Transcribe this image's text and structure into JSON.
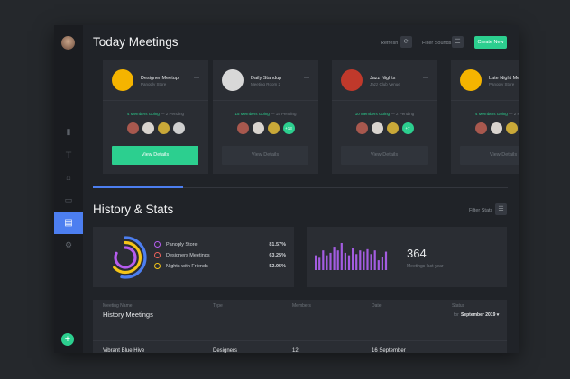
{
  "sidebar": {
    "items": [
      "chart-icon",
      "signpost-icon",
      "basket-icon",
      "chat-icon",
      "document-icon",
      "gear-icon"
    ],
    "active": "document-icon",
    "add_label": "+"
  },
  "header": {
    "title": "Today Meetings",
    "refresh": "Refresh",
    "filter": "Filter Sounds",
    "create": "Create New"
  },
  "meetings": [
    {
      "title": "Designer Meetup",
      "place": "Panoply Store",
      "going": "4 Members Going",
      "pending": "2 Pending",
      "more": "",
      "button": "View Details",
      "active": true,
      "logo": "#f5b400"
    },
    {
      "title": "Daily Standup",
      "place": "Meeting Room 2",
      "going": "15 Members Going",
      "pending": "15 Pending",
      "more": "+13",
      "button": "View Details",
      "active": false,
      "logo": "#d8d8d8"
    },
    {
      "title": "Jazz Nights",
      "place": "Jazz Club Venue",
      "going": "10 Members Going",
      "pending": "2 Pending",
      "more": "+7",
      "button": "View Details",
      "active": false,
      "logo": "#c0392b"
    },
    {
      "title": "Late Night Me",
      "place": "Panoply Store",
      "going": "4 Members Going",
      "pending": "2 Pending",
      "more": "",
      "button": "View Details",
      "active": false,
      "logo": "#f5b400"
    }
  ],
  "stats": {
    "title": "History & Stats",
    "filter": "Filter Stats",
    "legend": [
      {
        "label": "Panoply Store",
        "value": "81.57%",
        "color": "#b65cf0"
      },
      {
        "label": "Designers Meetings",
        "value": "63.25%",
        "color": "#f0635c"
      },
      {
        "label": "Nights with Friends",
        "value": "52.95%",
        "color": "#f5c518"
      }
    ],
    "bars": [
      12,
      10,
      16,
      12,
      14,
      19,
      16,
      22,
      14,
      12,
      18,
      13,
      16,
      15,
      17,
      13,
      16,
      8,
      11,
      15
    ],
    "count": "364",
    "count_label": "Meetings last year"
  },
  "history": {
    "title": "History Meetings",
    "for": "for",
    "period": "September 2019 ▾",
    "columns": [
      "Meeting Name",
      "Type",
      "Members",
      "Date",
      "Status"
    ],
    "rows": [
      [
        "Vibrant Blue Hive",
        "Designers",
        "12",
        "16 September",
        ""
      ]
    ]
  }
}
